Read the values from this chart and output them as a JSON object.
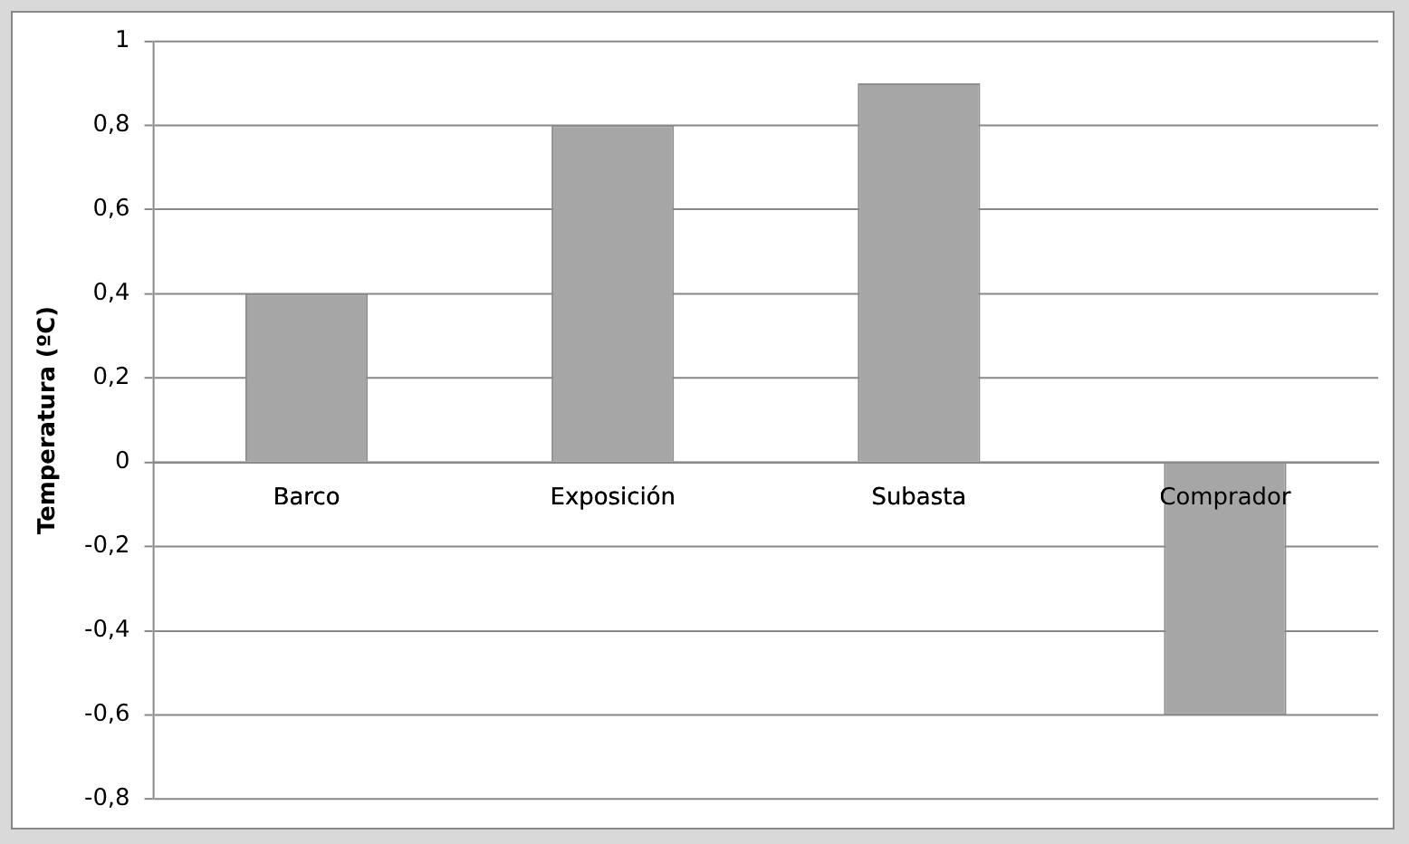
{
  "chart_data": {
    "type": "bar",
    "ylabel": "Temperatura (ºC)",
    "categories": [
      "Barco",
      "Exposición",
      "Subasta",
      "Comprador"
    ],
    "values": [
      0.4,
      0.8,
      0.9,
      -0.6
    ],
    "color": "#a6a6a6",
    "ylim": [
      -0.8,
      1
    ],
    "yticks": [
      {
        "value": -0.8,
        "label": "-0,8"
      },
      {
        "value": -0.6,
        "label": "-0,6"
      },
      {
        "value": -0.4,
        "label": "-0,4"
      },
      {
        "value": -0.2,
        "label": "-0,2"
      },
      0,
      {
        "value": 0.2,
        "label": "0,2"
      },
      {
        "value": 0.4,
        "label": "0,4"
      },
      {
        "value": 0.6,
        "label": "0,6"
      },
      {
        "value": 0.8,
        "label": "0,8"
      },
      1
    ],
    "grid": "y",
    "legend": false
  }
}
